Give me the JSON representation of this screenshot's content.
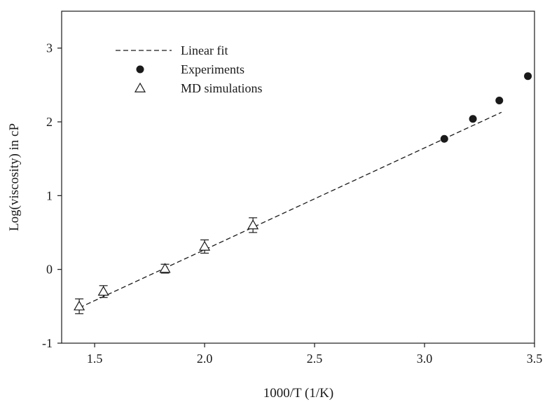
{
  "chart_data": {
    "type": "scatter",
    "title": "",
    "xlabel": "1000/T (1/K)",
    "ylabel": "Log(viscosity) in cP",
    "xlim": [
      1.35,
      3.5
    ],
    "ylim": [
      -1,
      3.5
    ],
    "x_ticks": [
      1.5,
      2.0,
      2.5,
      3.0,
      3.5
    ],
    "x_tick_labels": [
      "1.5",
      "2.0",
      "2.5",
      "3.0",
      "3.5"
    ],
    "y_ticks": [
      -1,
      0,
      1,
      2,
      3
    ],
    "y_tick_labels": [
      "-1",
      "0",
      "1",
      "2",
      "3"
    ],
    "grid": false,
    "legend_position": "top-left",
    "legend": [
      "Linear fit",
      "Experiments",
      "MD simulations"
    ],
    "series": [
      {
        "name": "Linear fit",
        "kind": "dashed-line",
        "color": "#1a1a1a",
        "x": [
          1.43,
          3.35
        ],
        "y": [
          -0.52,
          2.13
        ]
      },
      {
        "name": "Experiments",
        "kind": "filled-circle",
        "color": "#1a1a1a",
        "x": [
          3.09,
          3.22,
          3.34,
          3.47
        ],
        "y": [
          1.77,
          2.04,
          2.29,
          2.62
        ]
      },
      {
        "name": "MD simulations",
        "kind": "open-triangle",
        "color": "#1a1a1a",
        "x": [
          1.43,
          1.54,
          1.82,
          2.0,
          2.22
        ],
        "y": [
          -0.5,
          -0.3,
          0.01,
          0.31,
          0.6
        ],
        "error": [
          0.1,
          0.08,
          0.06,
          0.09,
          0.1
        ]
      }
    ]
  }
}
